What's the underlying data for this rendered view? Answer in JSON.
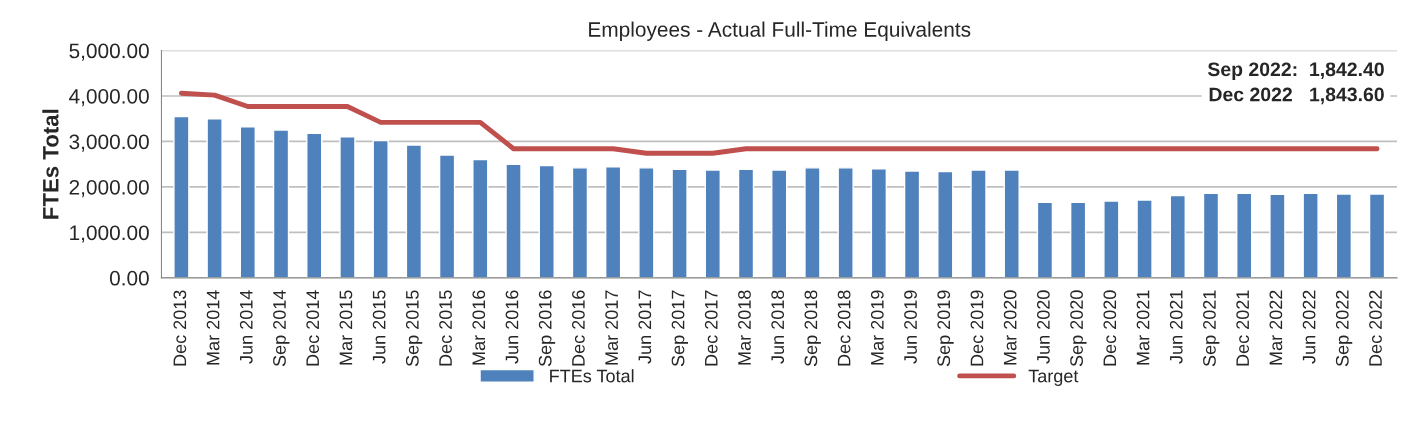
{
  "chart_data": {
    "type": "bar",
    "title": "Employees - Actual Full-Time Equivalents",
    "ylabel": "FTEs Total",
    "categories": [
      "Dec 2013",
      "Mar 2014",
      "Jun 2014",
      "Sep 2014",
      "Dec 2014",
      "Mar 2015",
      "Jun 2015",
      "Sep 2015",
      "Dec 2015",
      "Mar 2016",
      "Jun 2016",
      "Sep 2016",
      "Dec 2016",
      "Mar 2017",
      "Jun 2017",
      "Sep 2017",
      "Dec 2017",
      "Mar 2018",
      "Jun 2018",
      "Sep 2018",
      "Dec 2018",
      "Mar 2019",
      "Jun 2019",
      "Sep 2019",
      "Dec 2019",
      "Mar 2020",
      "Jun 2020",
      "Sep 2020",
      "Dec 2020",
      "Mar 2021",
      "Jun 2021",
      "Sep 2021",
      "Dec 2021",
      "Mar 2022",
      "Jun 2022",
      "Sep 2022",
      "Dec 2022"
    ],
    "series": [
      {
        "name": "FTEs Total",
        "color": "#4f81bd",
        "values": [
          3550,
          3500,
          3320,
          3250,
          3180,
          3100,
          3020,
          2920,
          2700,
          2600,
          2500,
          2470,
          2420,
          2440,
          2420,
          2390,
          2370,
          2390,
          2370,
          2420,
          2420,
          2400,
          2350,
          2340,
          2370,
          2370,
          1660,
          1660,
          1690,
          1710,
          1810,
          1860,
          1860,
          1840,
          1860,
          1842.4,
          1843.6
        ]
      },
      {
        "name": "Target",
        "type": "line",
        "color": "#c0504d",
        "values": [
          4060,
          4020,
          3770,
          3770,
          3770,
          3770,
          3420,
          3420,
          3420,
          3420,
          2840,
          2840,
          2840,
          2840,
          2740,
          2740,
          2740,
          2840,
          2840,
          2840,
          2840,
          2840,
          2840,
          2840,
          2840,
          2840,
          2840,
          2840,
          2840,
          2840,
          2840,
          2840,
          2840,
          2840,
          2840,
          2840,
          2840
        ]
      }
    ],
    "ylim": [
      0,
      5000
    ],
    "yticks": [
      {
        "value": 0,
        "label": "0.00"
      },
      {
        "value": 1000,
        "label": "1,000.00"
      },
      {
        "value": 2000,
        "label": "2,000.00"
      },
      {
        "value": 3000,
        "label": "3,000.00"
      },
      {
        "value": 4000,
        "label": "4,000.00"
      },
      {
        "value": 5000,
        "label": "5,000.00"
      }
    ],
    "annotations": [
      "Sep 2022:  1,842.40",
      "Dec 2022   1,843.60"
    ],
    "grid": "y",
    "legend": "bottom"
  }
}
